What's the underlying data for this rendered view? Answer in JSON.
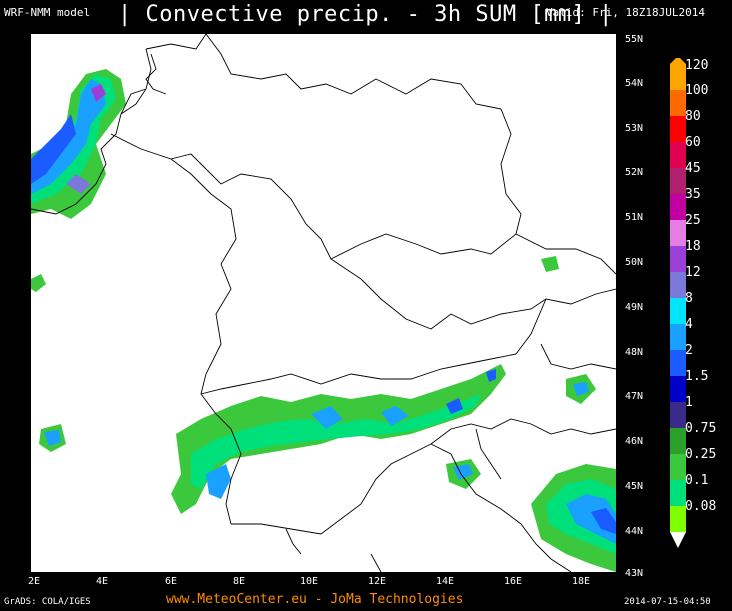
{
  "header": {
    "model": "WRF-NMM model",
    "title": "Convective precip. - 3h SUM [mm]",
    "valid": "Valid: Fri, 18Z18JUL2014"
  },
  "lat_labels": [
    "55N",
    "54N",
    "53N",
    "52N",
    "51N",
    "50N",
    "49N",
    "48N",
    "47N",
    "46N",
    "45N",
    "44N",
    "43N"
  ],
  "lon_labels": [
    "2E",
    "4E",
    "6E",
    "8E",
    "10E",
    "12E",
    "14E",
    "16E",
    "18E"
  ],
  "legend": {
    "levels": [
      "120",
      "100",
      "80",
      "60",
      "45",
      "35",
      "25",
      "18",
      "12",
      "8",
      "4",
      "2",
      "1.5",
      "1",
      "0.75",
      "0.25",
      "0.1",
      "0.08"
    ],
    "colors": [
      "#ffa500",
      "#ff6a00",
      "#ff0000",
      "#e00050",
      "#b0206f",
      "#c000a0",
      "#e47ee4",
      "#9a3fd8",
      "#7a78d8",
      "#00e5ff",
      "#1aa0ff",
      "#1a5cff",
      "#0000c8",
      "#3a2a8a",
      "#2aa02a",
      "#3cc83c",
      "#00e07a",
      "#7fff00",
      "#ffffff"
    ]
  },
  "footer": {
    "left": "GrADS: COLA/IGES",
    "mid": "www.MeteoCenter.eu  -  JoMa Technologies",
    "right": "2014-07-15-04:50"
  }
}
